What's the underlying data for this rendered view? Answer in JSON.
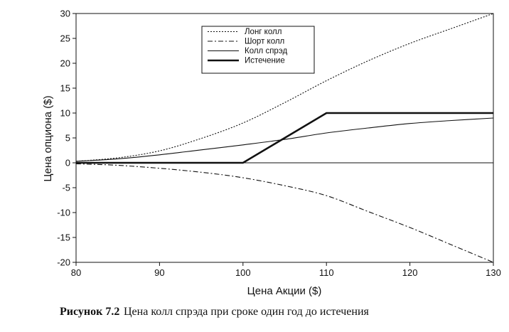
{
  "chart_data": {
    "type": "line",
    "title": "",
    "xlabel": "Цена Акции ($)",
    "ylabel": "Цена опциона ($)",
    "xlim": [
      80,
      130
    ],
    "ylim": [
      -20,
      30
    ],
    "x_ticks": [
      80,
      90,
      100,
      110,
      120,
      130
    ],
    "y_ticks": [
      30,
      25,
      20,
      15,
      10,
      5,
      0,
      -5,
      -10,
      -15,
      -20
    ],
    "grid": false,
    "zero_line": true,
    "legend": "top-center",
    "x": [
      80,
      85,
      90,
      95,
      100,
      105,
      110,
      115,
      120,
      125,
      130
    ],
    "series": [
      {
        "name": "Лонг колл",
        "style": "dotted",
        "color": "#111111",
        "values": [
          0.3,
          1.0,
          2.4,
          4.9,
          8.0,
          12.1,
          16.5,
          20.5,
          24.0,
          27.0,
          30.0
        ]
      },
      {
        "name": "Шорт колл",
        "style": "dash-dot",
        "color": "#111111",
        "values": [
          -0.2,
          -0.5,
          -1.1,
          -1.9,
          -3.0,
          -4.6,
          -6.6,
          -9.8,
          -13.0,
          -16.5,
          -20.0
        ]
      },
      {
        "name": "Колл спрэд",
        "style": "solid",
        "color": "#111111",
        "values": [
          0.3,
          0.8,
          1.6,
          2.6,
          3.6,
          4.7,
          6.0,
          7.0,
          7.9,
          8.5,
          9.0
        ]
      },
      {
        "name": "Истечение",
        "style": "bold",
        "color": "#111111",
        "values": [
          0,
          0,
          0,
          0,
          0,
          5,
          10,
          10,
          10,
          10,
          10
        ]
      }
    ]
  },
  "caption": {
    "label": "Рисунок 7.2",
    "text": "Цена колл спрэда при сроке один год до истечения"
  }
}
